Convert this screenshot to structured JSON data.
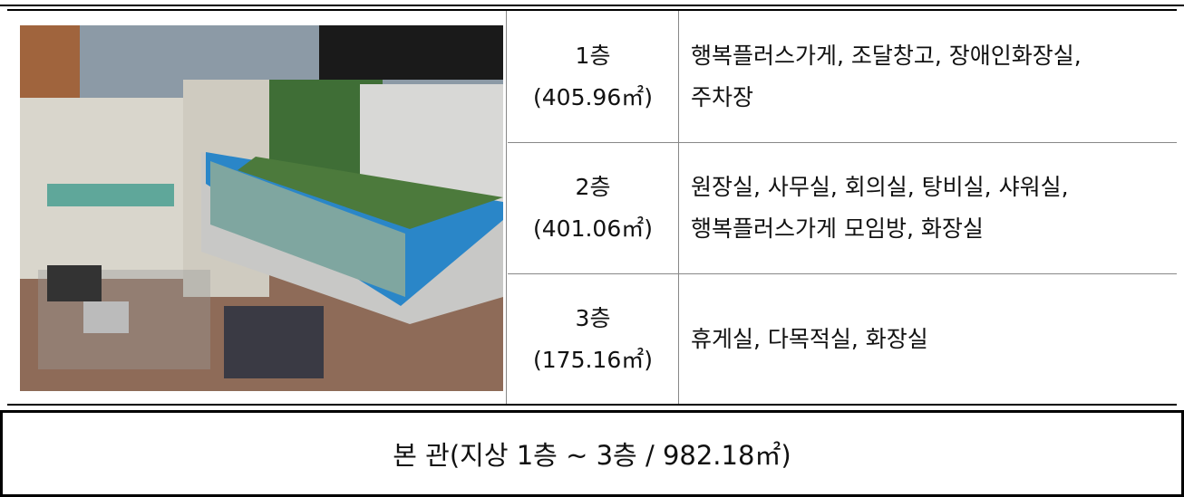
{
  "table": {
    "rows": [
      {
        "floor": "1층",
        "area": "(405.96㎡)",
        "rooms": [
          "행복플러스가게, 조달창고, 장애인화장실,",
          "주차장"
        ]
      },
      {
        "floor": "2층",
        "area": "(401.06㎡)",
        "rooms": [
          "원장실, 사무실, 회의실, 탕비실, 샤워실,",
          "행복플러스가게 모임방, 화장실"
        ]
      },
      {
        "floor": "3층",
        "area": "(175.16㎡)",
        "rooms": [
          "휴게실, 다목적실, 화장실"
        ]
      }
    ]
  },
  "footer": "본 관(지상 1층 ~ 3층 / 982.18㎡)"
}
